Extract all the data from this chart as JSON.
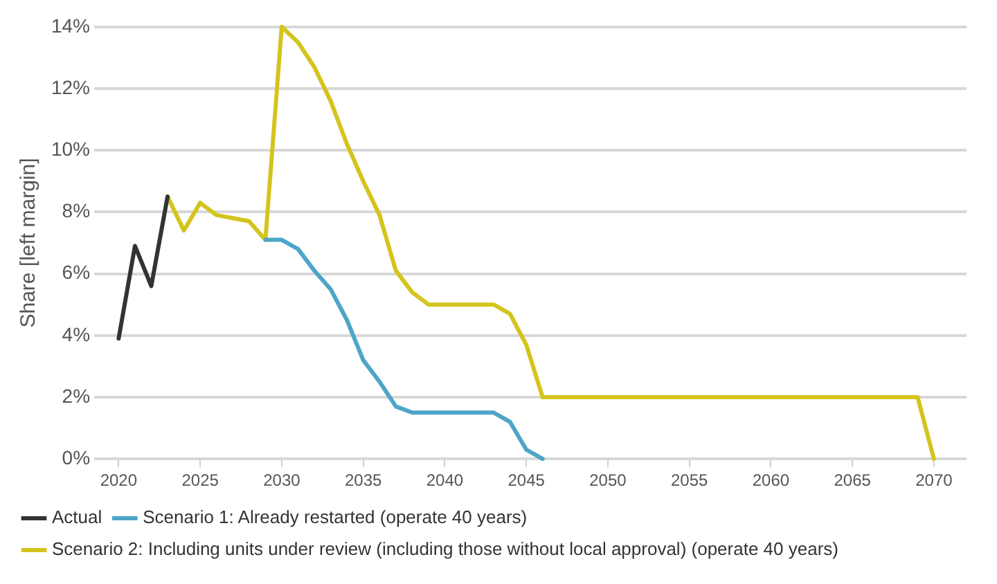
{
  "chart_data": {
    "type": "line",
    "ylabel": "Share [left margin]",
    "series": [
      {
        "name": "Actual",
        "color": "#333333",
        "x": [
          2020,
          2021,
          2022,
          2023
        ],
        "values": [
          3.9,
          6.9,
          5.6,
          8.5
        ]
      },
      {
        "name": "Scenario 1: Already restarted (operate 40 years)",
        "color": "#4ea5c8",
        "x": [
          2029,
          2030,
          2031,
          2032,
          2033,
          2034,
          2035,
          2036,
          2037,
          2038,
          2043,
          2044,
          2045,
          2046
        ],
        "values": [
          7.1,
          7.1,
          6.8,
          6.1,
          5.5,
          4.5,
          3.2,
          2.5,
          1.7,
          1.5,
          1.5,
          1.2,
          0.3,
          0
        ]
      },
      {
        "name": "Scenario 2: Including units under review (including those without local approval) (operate 40 years)",
        "color": "#d4c41c",
        "x": [
          2023,
          2024,
          2025,
          2026,
          2027,
          2028,
          2029,
          2030,
          2031,
          2032,
          2033,
          2034,
          2035,
          2036,
          2037,
          2038,
          2039,
          2043,
          2044,
          2045,
          2046,
          2069,
          2070
        ],
        "values": [
          8.5,
          7.4,
          8.3,
          7.9,
          7.8,
          7.7,
          7.1,
          14,
          13.5,
          12.7,
          11.6,
          10.2,
          9.0,
          7.9,
          6.1,
          5.4,
          5.0,
          5.0,
          4.7,
          3.7,
          2.0,
          2.0,
          0
        ]
      }
    ],
    "xlim": [
      2018.5,
      2072
    ],
    "xticks": [
      2020,
      2025,
      2030,
      2035,
      2040,
      2045,
      2050,
      2055,
      2060,
      2065,
      2070
    ],
    "ylim": [
      0,
      14
    ],
    "yticks": [
      {
        "value": 0,
        "label": "0%"
      },
      {
        "value": 2,
        "label": "2%"
      },
      {
        "value": 4,
        "label": "4%"
      },
      {
        "value": 6,
        "label": "6%"
      },
      {
        "value": 8,
        "label": "8%"
      },
      {
        "value": 10,
        "label": "10%"
      },
      {
        "value": 12,
        "label": "12%"
      },
      {
        "value": 14,
        "label": "14%"
      }
    ],
    "grid": "y",
    "legend": "bottom",
    "marker": "none",
    "line_style": "solid"
  }
}
